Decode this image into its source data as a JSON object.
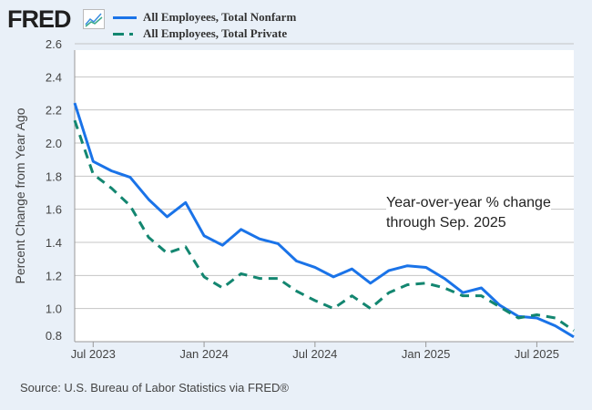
{
  "header": {
    "logo": "FRED",
    "logo_icon": "chart-line-icon"
  },
  "colors": {
    "nonfarm": "#1a73e8",
    "private": "#138670",
    "background": "#e9f0f8",
    "grid": "#c4c4c4"
  },
  "source": "Source: U.S. Bureau of Labor Statistics via FRED®",
  "chart_data": {
    "type": "line",
    "ylabel": "Percent Change from Year Ago",
    "ylim": [
      0.8,
      2.6
    ],
    "yticks": [
      "0.8",
      "1.0",
      "1.2",
      "1.4",
      "1.6",
      "1.8",
      "2.0",
      "2.2",
      "2.4",
      "2.6"
    ],
    "xticks": [
      "Jul 2023",
      "Jan 2024",
      "Jul 2024",
      "Jan 2025",
      "Jul 2025"
    ],
    "grid": true,
    "legend": "top-left",
    "annotation": [
      "Year-over-year % change",
      "through Sep. 2025"
    ],
    "x": [
      "2023-06",
      "2023-07",
      "2023-08",
      "2023-09",
      "2023-10",
      "2023-11",
      "2023-12",
      "2024-01",
      "2024-02",
      "2024-03",
      "2024-04",
      "2024-05",
      "2024-06",
      "2024-07",
      "2024-08",
      "2024-09",
      "2024-10",
      "2024-11",
      "2024-12",
      "2025-01",
      "2025-02",
      "2025-03",
      "2025-04",
      "2025-05",
      "2025-06",
      "2025-07",
      "2025-08",
      "2025-09"
    ],
    "series": [
      {
        "name": "All Employees, Total Nonfarm",
        "style": "solid",
        "values": [
          2.31,
          1.94,
          1.88,
          1.84,
          1.7,
          1.59,
          1.68,
          1.47,
          1.41,
          1.51,
          1.45,
          1.42,
          1.31,
          1.27,
          1.21,
          1.26,
          1.17,
          1.25,
          1.28,
          1.27,
          1.2,
          1.11,
          1.14,
          1.03,
          0.96,
          0.95,
          0.9,
          0.83
        ]
      },
      {
        "name": "All Employees, Total Private",
        "style": "dashed",
        "values": [
          2.2,
          1.86,
          1.77,
          1.66,
          1.46,
          1.36,
          1.4,
          1.21,
          1.14,
          1.23,
          1.2,
          1.2,
          1.12,
          1.06,
          1.01,
          1.09,
          1.01,
          1.11,
          1.16,
          1.17,
          1.14,
          1.09,
          1.09,
          1.02,
          0.95,
          0.97,
          0.95,
          0.87
        ]
      }
    ]
  }
}
